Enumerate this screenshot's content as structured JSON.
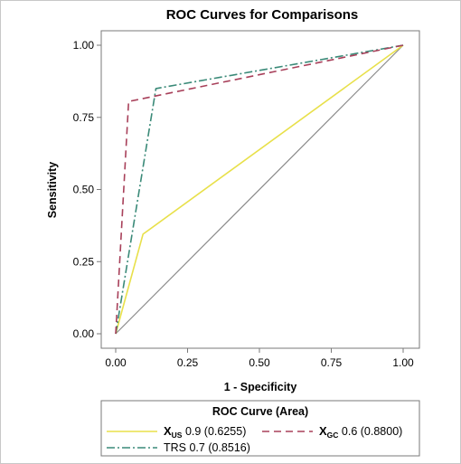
{
  "chart_data": {
    "type": "line",
    "title": "ROC Curves for Comparisons",
    "xlabel": "1 - Specificity",
    "ylabel": "Sensitivity",
    "xlim": [
      0,
      1
    ],
    "ylim": [
      0,
      1
    ],
    "xticks": [
      "0.00",
      "0.25",
      "0.50",
      "0.75",
      "1.00"
    ],
    "yticks": [
      "0.00",
      "0.25",
      "0.50",
      "0.75",
      "1.00"
    ],
    "legend_title": "ROC Curve (Area)",
    "legend_position": "bottom",
    "series": [
      {
        "name": "X",
        "name_subscript": "US",
        "name_suffix": " 0.9  (0.6255)",
        "color": "#e8e04a",
        "dash": "solid",
        "x": [
          0,
          0.095,
          1
        ],
        "y": [
          0,
          0.345,
          1
        ]
      },
      {
        "name": "X",
        "name_subscript": "GC",
        "name_suffix": " 0.6  (0.8800)",
        "color": "#a8405a",
        "dash": "dashed",
        "x": [
          0,
          0.045,
          1
        ],
        "y": [
          0,
          0.805,
          1
        ]
      },
      {
        "name": "TRS 0.7  (0.8516)",
        "color": "#3a8a78",
        "dash": "dashdot",
        "x": [
          0,
          0.14,
          1
        ],
        "y": [
          0,
          0.85,
          1
        ]
      },
      {
        "name": "",
        "color": "#8a8a8a",
        "dash": "solid",
        "reference": true,
        "x": [
          0,
          1
        ],
        "y": [
          0,
          1
        ]
      }
    ]
  }
}
